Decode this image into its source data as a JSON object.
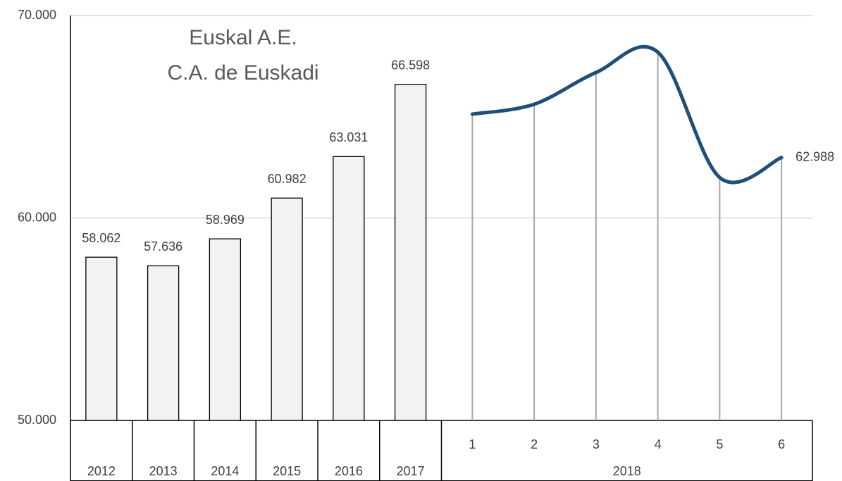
{
  "chart_data": [
    {
      "type": "bar",
      "title": [
        "Euskal A.E.",
        "C.A. de Euskadi"
      ],
      "categories": [
        "2012",
        "2013",
        "2014",
        "2015",
        "2016",
        "2017"
      ],
      "values": [
        58062,
        57636,
        58969,
        60982,
        63031,
        66598
      ],
      "value_labels": [
        "58.062",
        "57.636",
        "58.969",
        "60.982",
        "63.031",
        "66.598"
      ],
      "color": "#f2f2f2",
      "ylim": [
        50000,
        70000
      ],
      "yticks": [
        {
          "value": 50000,
          "label": "50.000"
        },
        {
          "value": 60000,
          "label": "60.000"
        },
        {
          "value": 70000,
          "label": "70.000"
        }
      ],
      "grid": true
    },
    {
      "type": "line",
      "group": "2018",
      "categories": [
        "1",
        "2",
        "3",
        "4",
        "5",
        "6"
      ],
      "values": [
        65130,
        65617,
        67183,
        68190,
        62000,
        62988
      ],
      "value_labels": [
        null,
        null,
        null,
        null,
        null,
        "62.988"
      ],
      "color": "#1f4e79"
    }
  ]
}
